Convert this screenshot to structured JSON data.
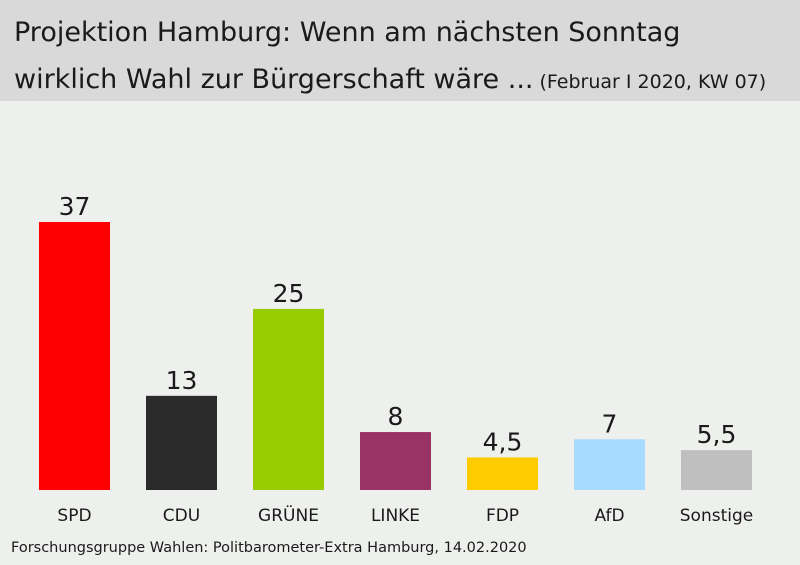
{
  "header": {
    "title_line1": "Projektion Hamburg: Wenn am nächsten Sonntag",
    "title_line2": "wirklich Wahl zur Bürgerschaft wäre ...",
    "subtitle": "(Februar I 2020, KW 07)"
  },
  "source": "Forschungsgruppe Wahlen: Politbarometer-Extra Hamburg, 14.02.2020",
  "chart_data": {
    "type": "bar",
    "categories": [
      "SPD",
      "CDU",
      "GRÜNE",
      "LINKE",
      "FDP",
      "AfD",
      "Sonstige"
    ],
    "values": [
      37,
      13,
      25,
      8,
      4.5,
      7,
      5.5
    ],
    "value_labels": [
      "37",
      "13",
      "25",
      "8",
      "4,5",
      "7",
      "5,5"
    ],
    "colors": [
      "#ff0000",
      "#2b2b2b",
      "#99cc00",
      "#993366",
      "#ffcc00",
      "#a6daff",
      "#bfbfbf"
    ],
    "ylim": [
      0,
      37
    ],
    "grid": false,
    "legend": "none"
  }
}
